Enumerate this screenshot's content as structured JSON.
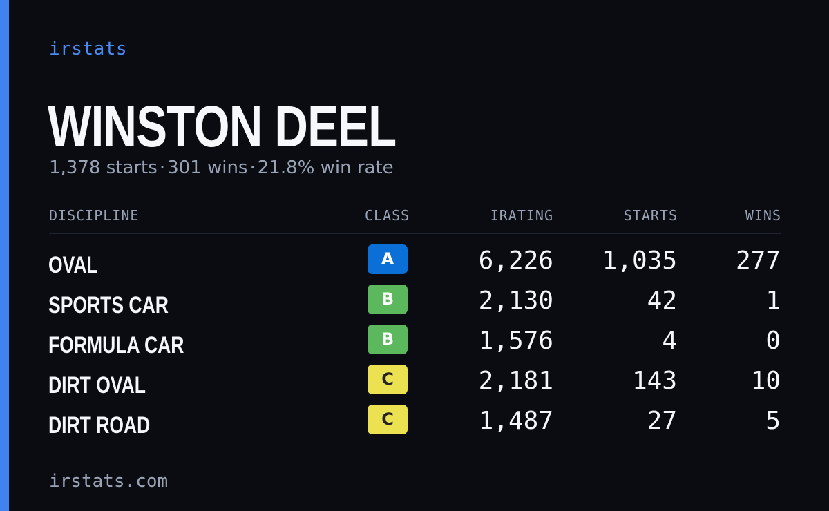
{
  "brand": "irstats",
  "player": {
    "name": "WINSTON DEEL"
  },
  "summary": {
    "starts": "1,378 starts",
    "wins": "301 wins",
    "win_rate": "21.8% win rate",
    "separator": "·"
  },
  "table": {
    "headers": {
      "discipline": "DISCIPLINE",
      "class": "CLASS",
      "irating": "IRATING",
      "starts": "STARTS",
      "wins": "WINS"
    },
    "rows": [
      {
        "discipline": "OVAL",
        "class": "A",
        "irating": "6,226",
        "starts": "1,035",
        "wins": "277"
      },
      {
        "discipline": "SPORTS CAR",
        "class": "B",
        "irating": "2,130",
        "starts": "42",
        "wins": "1"
      },
      {
        "discipline": "FORMULA CAR",
        "class": "B",
        "irating": "1,576",
        "starts": "4",
        "wins": "0"
      },
      {
        "discipline": "DIRT OVAL",
        "class": "C",
        "irating": "2,181",
        "starts": "143",
        "wins": "10"
      },
      {
        "discipline": "DIRT ROAD",
        "class": "C",
        "irating": "1,487",
        "starts": "27",
        "wins": "5"
      }
    ]
  },
  "class_colors": {
    "A": {
      "bg": "#0a6fd6",
      "fg": "#ffffff"
    },
    "B": {
      "bg": "#5cb85c",
      "fg": "#ffffff"
    },
    "C": {
      "bg": "#ece150",
      "fg": "#222222"
    }
  },
  "colors": {
    "background": "#0a0c12",
    "accent": "#3f82f0",
    "text": "#f4f6fb",
    "muted": "#9aa3b5"
  },
  "footer": {
    "url": "irstats.com"
  }
}
